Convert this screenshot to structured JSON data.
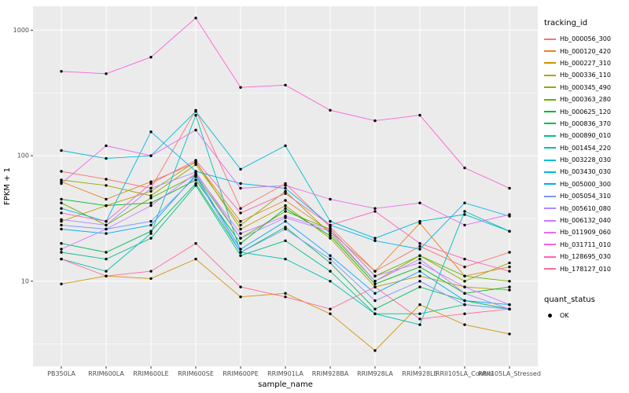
{
  "axes": {
    "x_label": "sample_name",
    "y_label": "FPKM + 1",
    "y_ticks": [
      10,
      100,
      1000
    ]
  },
  "legend": {
    "color_title": "tracking_id",
    "shape_title": "quant_status",
    "shape_items": [
      {
        "label": "OK"
      }
    ]
  },
  "panel": {
    "bg": "#EBEBEB",
    "grid": "#FFFFFF",
    "point": "#000000",
    "tick_text": "#4D4D4D"
  },
  "chart_data": {
    "type": "line",
    "log_y": true,
    "title": "",
    "xlabel": "sample_name",
    "ylabel": "FPKM + 1",
    "ylim": [
      2.1,
      1550
    ],
    "grid": true,
    "legend_position": "right",
    "categories": [
      "PB350LA",
      "RRIM600LA",
      "RRIM600LE",
      "RRIM600SE",
      "RRIM600PE",
      "RRIM901LA",
      "RRIM928BA",
      "RRIM928LA",
      "RRIM928LE",
      "RRII105LA_Control",
      "RRII105LA_Stressed"
    ],
    "series": [
      {
        "name": "Hb_000056_300",
        "color": "#F8766D",
        "values": [
          75,
          65,
          55,
          230,
          38,
          60,
          27,
          12,
          19,
          13,
          17
        ]
      },
      {
        "name": "Hb_000120_420",
        "color": "#E88526",
        "values": [
          62,
          45,
          62,
          88,
          30,
          44,
          25,
          12,
          29,
          11,
          13
        ]
      },
      {
        "name": "Hb_000227_310",
        "color": "#D39200",
        "values": [
          9.5,
          11,
          10.5,
          15,
          7.5,
          8,
          5.5,
          2.8,
          6.5,
          4.5,
          3.8
        ]
      },
      {
        "name": "Hb_000336_110",
        "color": "#B79F00",
        "values": [
          30,
          40,
          52,
          90,
          26,
          40,
          22,
          9,
          11,
          9,
          8.5
        ]
      },
      {
        "name": "Hb_000345_490",
        "color": "#93AA00",
        "values": [
          64,
          58,
          48,
          85,
          28,
          52,
          24,
          10,
          16,
          10,
          14
        ]
      },
      {
        "name": "Hb_000363_280",
        "color": "#64B200",
        "values": [
          42,
          28,
          46,
          70,
          22,
          36,
          26,
          11,
          16,
          11,
          10
        ]
      },
      {
        "name": "Hb_000625_120",
        "color": "#00B81F",
        "values": [
          45,
          40,
          42,
          64,
          20,
          38,
          23,
          9.5,
          13,
          8,
          9
        ]
      },
      {
        "name": "Hb_000836_370",
        "color": "#00BC59",
        "values": [
          20,
          17,
          25,
          60,
          17,
          27,
          14,
          6,
          9,
          7,
          6
        ]
      },
      {
        "name": "Hb_000890_010",
        "color": "#00C08B",
        "values": [
          17,
          15,
          22,
          58,
          16,
          21,
          12,
          5.5,
          5.5,
          6.5,
          6
        ]
      },
      {
        "name": "Hb_001454_220",
        "color": "#00C0B2",
        "values": [
          15,
          12,
          24,
          210,
          17,
          15,
          10,
          5.5,
          4.5,
          36,
          25
        ]
      },
      {
        "name": "Hb_003228_030",
        "color": "#00BDD1",
        "values": [
          110,
          95,
          100,
          225,
          78,
          120,
          30,
          22,
          30,
          34,
          25
        ]
      },
      {
        "name": "Hb_003430_030",
        "color": "#00B5EC",
        "values": [
          38,
          30,
          155,
          75,
          60,
          55,
          28,
          21,
          18,
          42,
          33
        ]
      },
      {
        "name": "Hb_005000_300",
        "color": "#00A8FF",
        "values": [
          26,
          24,
          28,
          70,
          18,
          30,
          16,
          8,
          12,
          7,
          6.5
        ]
      },
      {
        "name": "Hb_005054_310",
        "color": "#7997FF",
        "values": [
          28,
          26,
          30,
          68,
          17,
          26,
          15,
          7,
          10,
          6.5,
          6
        ]
      },
      {
        "name": "Hb_005610_080",
        "color": "#AC88FF",
        "values": [
          31,
          28,
          55,
          74,
          22,
          32,
          25,
          10,
          15,
          8,
          6
        ]
      },
      {
        "name": "Hb_006132_040",
        "color": "#D277FF",
        "values": [
          18,
          26,
          40,
          72,
          24,
          33,
          26,
          11,
          14,
          9,
          6.5
        ]
      },
      {
        "name": "Hb_011909_060",
        "color": "#EC69EF",
        "values": [
          60,
          120,
          100,
          160,
          55,
          58,
          45,
          38,
          42,
          28,
          34
        ]
      },
      {
        "name": "Hb_031711_010",
        "color": "#FB61D7",
        "values": [
          470,
          450,
          610,
          1250,
          350,
          365,
          230,
          190,
          210,
          80,
          55
        ]
      },
      {
        "name": "Hb_128695_030",
        "color": "#FF62BA",
        "values": [
          35,
          30,
          60,
          92,
          35,
          50,
          28,
          36,
          20,
          15,
          12
        ]
      },
      {
        "name": "Hb_178127_010",
        "color": "#FF6A98",
        "values": [
          15,
          11,
          12,
          20,
          9,
          7.5,
          6,
          9,
          5,
          5.5,
          6
        ]
      }
    ]
  }
}
